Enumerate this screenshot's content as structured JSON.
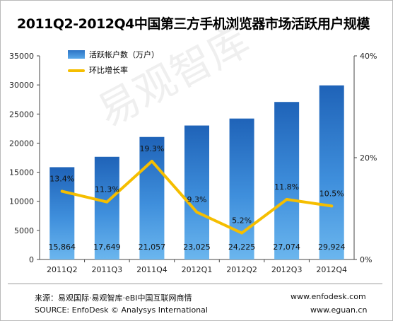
{
  "chart_data": {
    "type": "bar",
    "title": "2011Q2-2012Q4中国第三方手机浏览器市场活跃用户规模",
    "categories": [
      "2011Q2",
      "2011Q3",
      "2011Q4",
      "2012Q1",
      "2012Q2",
      "2012Q3",
      "2012Q4"
    ],
    "series": [
      {
        "name": "活跃帐户数（万户）",
        "type": "bar",
        "axis": "left",
        "values": [
          15864,
          17649,
          21057,
          23025,
          24225,
          27074,
          29924
        ],
        "labels": [
          "15,864",
          "17,649",
          "21,057",
          "23,025",
          "24,225",
          "27,074",
          "29,924"
        ],
        "color": "#2e78c8"
      },
      {
        "name": "环比增长率",
        "type": "line",
        "axis": "right",
        "values": [
          13.4,
          11.3,
          19.3,
          9.3,
          5.2,
          11.8,
          10.5
        ],
        "labels": [
          "13.4%",
          "11.3%",
          "19.3%",
          "9.3%",
          "5.2%",
          "11.8%",
          "10.5%"
        ],
        "color": "#f5be00"
      }
    ],
    "y_left": {
      "ylim": [
        0,
        35000
      ],
      "ticks": [
        0,
        5000,
        10000,
        15000,
        20000,
        25000,
        30000,
        35000
      ],
      "tick_labels": [
        "0",
        "5000",
        "10000",
        "15000",
        "20000",
        "25000",
        "30000",
        "35000"
      ]
    },
    "y_right": {
      "ylim": [
        0,
        40
      ],
      "ticks": [
        0,
        20,
        40
      ],
      "tick_labels": [
        "0%",
        "20%",
        "40%"
      ]
    },
    "grid": false,
    "legend_position": "top-left"
  },
  "watermark": "易观智库",
  "footer": {
    "source_cn": "来源：易观国际·易观智库·eBI中国互联网商情",
    "source_en": "SOURCE: EnfoDesk © Analysys International",
    "url_1": "www.enfodesk.com",
    "url_2": "www.eguan.cn"
  }
}
